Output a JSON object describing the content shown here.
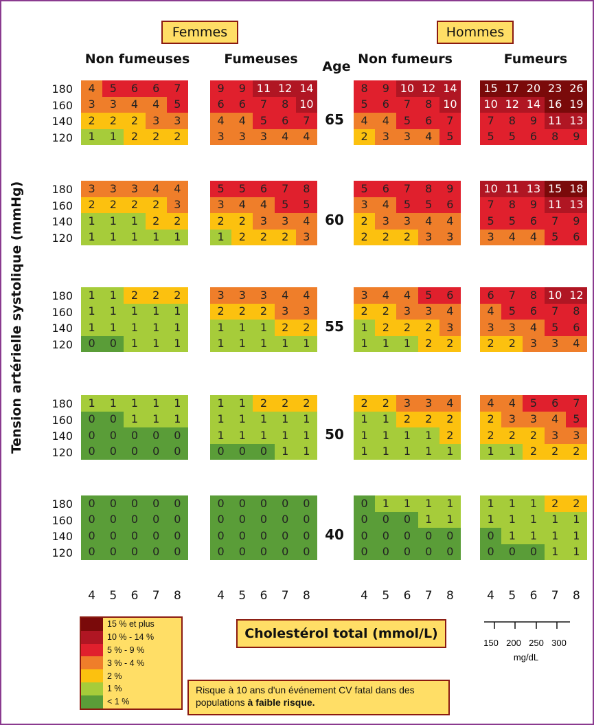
{
  "sex_labels": {
    "women": "Femmes",
    "men": "Hommes"
  },
  "group_labels": {
    "women_nonsmokers": "Non fumeuses",
    "women_smokers": "Fumeuses",
    "age_header": "Age",
    "men_nonsmokers": "Non fumeurs",
    "men_smokers": "Fumeurs"
  },
  "y_axis_title": "Tension artérielle systolique (mmHg)",
  "x_axis_title": "Cholestérol total (mmol/L)",
  "mgdl_axis": {
    "ticks": [
      "150",
      "200",
      "250",
      "300"
    ],
    "unit": "mg/dL"
  },
  "risk_note": {
    "text": "Risque à 10 ans d'un événement CV fatal dans des populations ",
    "bold": "à faible risque."
  },
  "legend": [
    {
      "label": "15 % et plus",
      "color": "#7a0a0a"
    },
    {
      "label": "10 % - 14 %",
      "color": "#b01623"
    },
    {
      "label": "5 % - 9 %",
      "color": "#e0202d"
    },
    {
      "label": "3 % - 4 %",
      "color": "#ef7e2a"
    },
    {
      "label": "2 %",
      "color": "#fcc10f"
    },
    {
      "label": "1 %",
      "color": "#a6cc3a"
    },
    {
      "label": "< 1 %",
      "color": "#5a9d38"
    }
  ],
  "chart_data": {
    "type": "heatmap",
    "ages": [
      "65",
      "60",
      "55",
      "50",
      "40"
    ],
    "blood_pressure_ticks": [
      "180",
      "160",
      "140",
      "120"
    ],
    "cholesterol_ticks": [
      "4",
      "5",
      "6",
      "7",
      "8"
    ],
    "groups": [
      "Non fumeuses",
      "Fumeuses",
      "Non fumeurs",
      "Fumeurs"
    ],
    "values": {
      "65": [
        [
          [
            4,
            5,
            6,
            6,
            7
          ],
          [
            3,
            3,
            4,
            4,
            5
          ],
          [
            2,
            2,
            2,
            3,
            3
          ],
          [
            1,
            1,
            2,
            2,
            2
          ]
        ],
        [
          [
            9,
            9,
            11,
            12,
            14
          ],
          [
            6,
            6,
            7,
            8,
            10
          ],
          [
            4,
            4,
            5,
            6,
            7
          ],
          [
            3,
            3,
            3,
            4,
            4
          ]
        ],
        [
          [
            8,
            9,
            10,
            12,
            14
          ],
          [
            5,
            6,
            7,
            8,
            10
          ],
          [
            4,
            4,
            5,
            6,
            7
          ],
          [
            2,
            3,
            3,
            4,
            5
          ]
        ],
        [
          [
            15,
            17,
            20,
            23,
            26
          ],
          [
            10,
            12,
            14,
            16,
            19
          ],
          [
            7,
            8,
            9,
            11,
            13
          ],
          [
            5,
            5,
            6,
            8,
            9
          ]
        ]
      ],
      "60": [
        [
          [
            3,
            3,
            3,
            4,
            4
          ],
          [
            2,
            2,
            2,
            2,
            3
          ],
          [
            1,
            1,
            1,
            2,
            2
          ],
          [
            1,
            1,
            1,
            1,
            1
          ]
        ],
        [
          [
            5,
            5,
            6,
            7,
            8
          ],
          [
            3,
            4,
            4,
            5,
            5
          ],
          [
            2,
            2,
            3,
            3,
            4
          ],
          [
            1,
            2,
            2,
            2,
            3
          ]
        ],
        [
          [
            5,
            6,
            7,
            8,
            9
          ],
          [
            3,
            4,
            5,
            5,
            6
          ],
          [
            2,
            3,
            3,
            4,
            4
          ],
          [
            2,
            2,
            2,
            3,
            3
          ]
        ],
        [
          [
            10,
            11,
            13,
            15,
            18
          ],
          [
            7,
            8,
            9,
            11,
            13
          ],
          [
            5,
            5,
            6,
            7,
            9
          ],
          [
            3,
            4,
            4,
            5,
            6
          ]
        ]
      ],
      "55": [
        [
          [
            1,
            1,
            2,
            2,
            2
          ],
          [
            1,
            1,
            1,
            1,
            1
          ],
          [
            1,
            1,
            1,
            1,
            1
          ],
          [
            0,
            0,
            1,
            1,
            1
          ]
        ],
        [
          [
            3,
            3,
            3,
            4,
            4
          ],
          [
            2,
            2,
            2,
            3,
            3
          ],
          [
            1,
            1,
            1,
            2,
            2
          ],
          [
            1,
            1,
            1,
            1,
            1
          ]
        ],
        [
          [
            3,
            4,
            4,
            5,
            6
          ],
          [
            2,
            2,
            3,
            3,
            4
          ],
          [
            1,
            2,
            2,
            2,
            3
          ],
          [
            1,
            1,
            1,
            2,
            2
          ]
        ],
        [
          [
            6,
            7,
            8,
            10,
            12
          ],
          [
            4,
            5,
            6,
            7,
            8
          ],
          [
            3,
            3,
            4,
            5,
            6
          ],
          [
            2,
            2,
            3,
            3,
            4
          ]
        ]
      ],
      "50": [
        [
          [
            1,
            1,
            1,
            1,
            1
          ],
          [
            0,
            0,
            1,
            1,
            1
          ],
          [
            0,
            0,
            0,
            0,
            0
          ],
          [
            0,
            0,
            0,
            0,
            0
          ]
        ],
        [
          [
            1,
            1,
            2,
            2,
            2
          ],
          [
            1,
            1,
            1,
            1,
            1
          ],
          [
            1,
            1,
            1,
            1,
            1
          ],
          [
            0,
            0,
            0,
            1,
            1
          ]
        ],
        [
          [
            2,
            2,
            3,
            3,
            4
          ],
          [
            1,
            1,
            2,
            2,
            2
          ],
          [
            1,
            1,
            1,
            1,
            2
          ],
          [
            1,
            1,
            1,
            1,
            1
          ]
        ],
        [
          [
            4,
            4,
            5,
            6,
            7
          ],
          [
            2,
            3,
            3,
            4,
            5
          ],
          [
            2,
            2,
            2,
            3,
            3
          ],
          [
            1,
            1,
            2,
            2,
            2
          ]
        ]
      ],
      "40": [
        [
          [
            0,
            0,
            0,
            0,
            0
          ],
          [
            0,
            0,
            0,
            0,
            0
          ],
          [
            0,
            0,
            0,
            0,
            0
          ],
          [
            0,
            0,
            0,
            0,
            0
          ]
        ],
        [
          [
            0,
            0,
            0,
            0,
            0
          ],
          [
            0,
            0,
            0,
            0,
            0
          ],
          [
            0,
            0,
            0,
            0,
            0
          ],
          [
            0,
            0,
            0,
            0,
            0
          ]
        ],
        [
          [
            0,
            1,
            1,
            1,
            1
          ],
          [
            0,
            0,
            0,
            1,
            1
          ],
          [
            0,
            0,
            0,
            0,
            0
          ],
          [
            0,
            0,
            0,
            0,
            0
          ]
        ],
        [
          [
            1,
            1,
            1,
            2,
            2
          ],
          [
            1,
            1,
            1,
            1,
            1
          ],
          [
            0,
            1,
            1,
            1,
            1
          ],
          [
            0,
            0,
            0,
            1,
            1
          ]
        ]
      ]
    }
  }
}
